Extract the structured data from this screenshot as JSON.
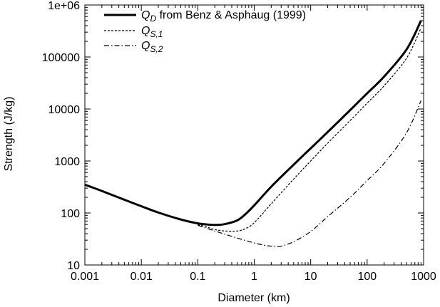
{
  "chart_data": {
    "type": "line",
    "x_scale": "log",
    "y_scale": "log",
    "xlabel": "Diameter (km)",
    "ylabel": "Strength (J/kg)",
    "xlim": [
      0.001,
      1000
    ],
    "ylim": [
      10,
      1000000
    ],
    "x_ticks": [
      {
        "value": 0.001,
        "label": "0.001"
      },
      {
        "value": 0.01,
        "label": "0.01"
      },
      {
        "value": 0.1,
        "label": "0.1"
      },
      {
        "value": 1,
        "label": "1"
      },
      {
        "value": 10,
        "label": "10"
      },
      {
        "value": 100,
        "label": "100"
      },
      {
        "value": 1000,
        "label": "1000"
      }
    ],
    "y_ticks": [
      {
        "value": 10,
        "label": "10"
      },
      {
        "value": 100,
        "label": "100"
      },
      {
        "value": 1000,
        "label": "1000"
      },
      {
        "value": 10000,
        "label": "10000"
      },
      {
        "value": 100000,
        "label": "100000"
      },
      {
        "value": 1000000,
        "label": "1e+06"
      }
    ],
    "grid": false,
    "legend_position": "top-left",
    "series": [
      {
        "name": "Q_D from Benz & Asphaug (1999)",
        "legend": {
          "main": "Q",
          "sub": "D",
          "suffix": " from Benz & Asphaug (1999)"
        },
        "style": "solid-thick",
        "x": [
          0.001,
          0.002,
          0.005,
          0.01,
          0.02,
          0.05,
          0.1,
          0.15,
          0.2,
          0.3,
          0.5,
          0.7,
          1,
          2,
          5,
          10,
          20,
          50,
          100,
          200,
          500,
          900
        ],
        "y": [
          350,
          265,
          180,
          135,
          102,
          75,
          63,
          60,
          59,
          61,
          72,
          95,
          140,
          320,
          850,
          1750,
          3600,
          9500,
          20000,
          42000,
          140000,
          500000
        ]
      },
      {
        "name": "Q_S,1",
        "legend": {
          "main": "Q",
          "sub": "S,1",
          "suffix": ""
        },
        "style": "dashed",
        "x": [
          0.1,
          0.15,
          0.2,
          0.3,
          0.5,
          0.7,
          1,
          2,
          5,
          10,
          20,
          50,
          100,
          200,
          500,
          900
        ],
        "y": [
          60,
          53,
          48,
          45,
          45,
          50,
          65,
          150,
          450,
          1000,
          2200,
          6000,
          13000,
          28000,
          95000,
          360000
        ]
      },
      {
        "name": "Q_S,2",
        "legend": {
          "main": "Q",
          "sub": "S,2",
          "suffix": ""
        },
        "style": "dash-dot",
        "x": [
          0.1,
          0.2,
          0.5,
          1,
          1.5,
          2,
          2.5,
          3,
          5,
          10,
          20,
          50,
          100,
          200,
          500,
          900
        ],
        "y": [
          58,
          45,
          33,
          26.5,
          24,
          23,
          22.6,
          23,
          28,
          44,
          85,
          200,
          420,
          900,
          3500,
          14500
        ]
      }
    ]
  }
}
